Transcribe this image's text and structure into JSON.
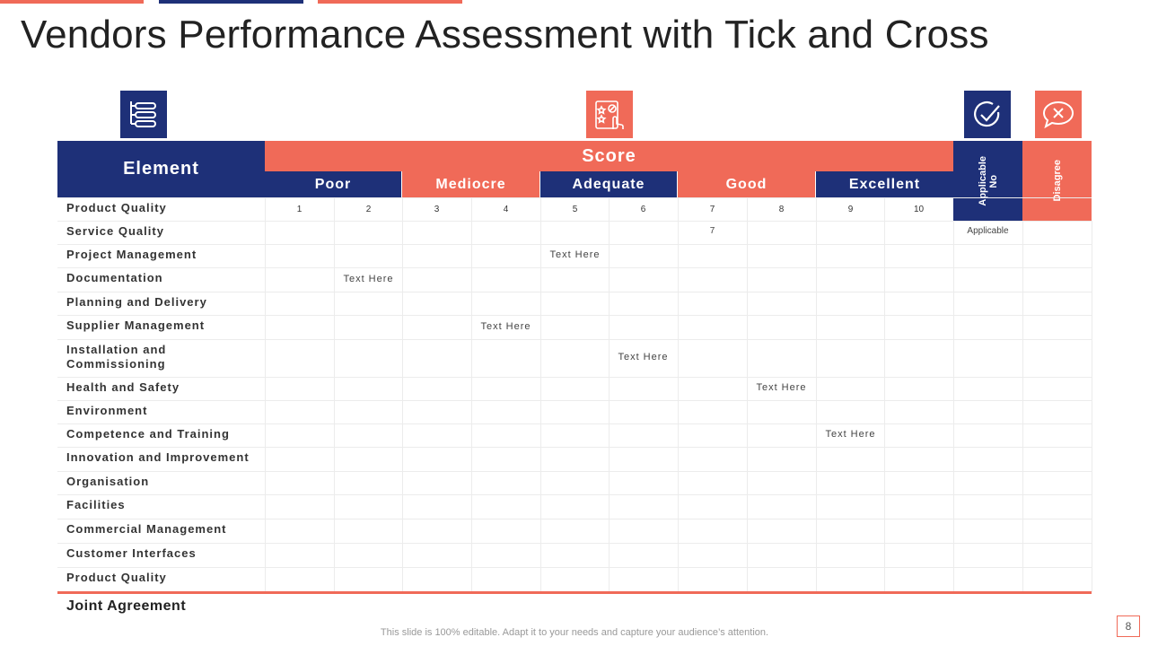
{
  "title": "Vendors Performance Assessment with Tick and Cross",
  "colors": {
    "navy": "#1e3078",
    "coral": "#f06a58"
  },
  "icons": [
    "list-icon",
    "rating-hand-icon",
    "checkmark-icon",
    "cross-speech-icon"
  ],
  "header": {
    "element": "Element",
    "score": "Score",
    "categories": [
      "Poor",
      "Mediocre",
      "Adequate",
      "Good",
      "Excellent"
    ],
    "applicable": "Applicable",
    "applicable_sub": "No",
    "disagree": "Disagree"
  },
  "scale": [
    "1",
    "2",
    "3",
    "4",
    "5",
    "6",
    "7",
    "8",
    "9",
    "10"
  ],
  "rows": [
    {
      "label": "Product Quality",
      "score_col": null,
      "score_text": "",
      "applicable": ""
    },
    {
      "label": "Service Quality",
      "score_col": 7,
      "score_text": "7",
      "applicable": "Applicable"
    },
    {
      "label": "Project Management",
      "score_col": 5,
      "score_text": "Text Here",
      "applicable": ""
    },
    {
      "label": "Documentation",
      "score_col": 2,
      "score_text": "Text Here",
      "applicable": ""
    },
    {
      "label": "Planning and Delivery",
      "score_col": null,
      "score_text": "",
      "applicable": ""
    },
    {
      "label": "Supplier Management",
      "score_col": 4,
      "score_text": "Text Here",
      "applicable": ""
    },
    {
      "label": "Installation and Commissioning",
      "score_col": 6,
      "score_text": "Text Here",
      "applicable": ""
    },
    {
      "label": "Health and Safety",
      "score_col": 8,
      "score_text": "Text Here",
      "applicable": ""
    },
    {
      "label": "Environment",
      "score_col": null,
      "score_text": "",
      "applicable": ""
    },
    {
      "label": "Competence and Training",
      "score_col": 9,
      "score_text": "Text Here",
      "applicable": ""
    },
    {
      "label": "Innovation and Improvement",
      "score_col": null,
      "score_text": "",
      "applicable": ""
    },
    {
      "label": "Organisation",
      "score_col": null,
      "score_text": "",
      "applicable": ""
    },
    {
      "label": "Facilities",
      "score_col": null,
      "score_text": "",
      "applicable": ""
    },
    {
      "label": "Commercial Management",
      "score_col": null,
      "score_text": "",
      "applicable": ""
    },
    {
      "label": "Customer Interfaces",
      "score_col": null,
      "score_text": "",
      "applicable": ""
    },
    {
      "label": "Product Quality",
      "score_col": null,
      "score_text": "",
      "applicable": ""
    }
  ],
  "joint_agreement": "Joint Agreement",
  "footer_note": "This slide is 100% editable. Adapt it to your needs and capture your audience’s attention.",
  "page_number": "8"
}
